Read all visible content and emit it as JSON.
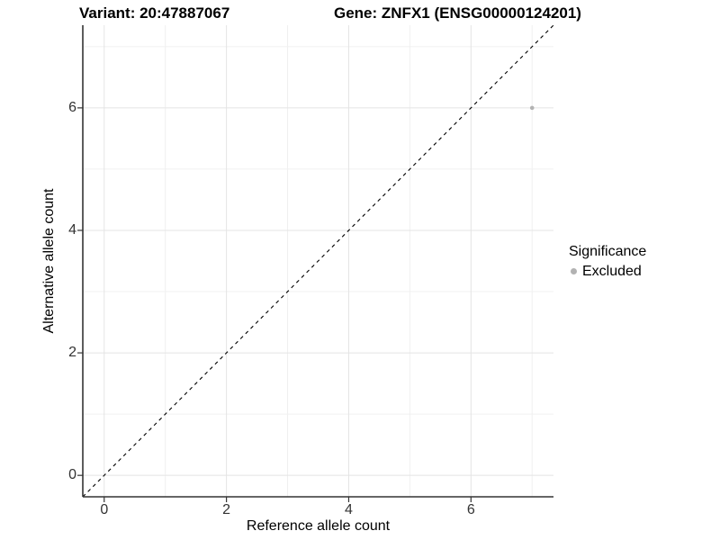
{
  "chart_data": {
    "type": "scatter",
    "titles": {
      "left": "Variant: 20:47887067",
      "right": "Gene: ZNFX1 (ENSG00000124201)"
    },
    "xlabel": "Reference allele count",
    "ylabel": "Alternative allele count",
    "xlim": [
      -0.35,
      7.35
    ],
    "ylim": [
      -0.35,
      7.35
    ],
    "x_ticks": [
      0,
      2,
      4,
      6
    ],
    "y_ticks": [
      0,
      2,
      4,
      6
    ],
    "x_minor_ticks": [
      1,
      3,
      5,
      7
    ],
    "y_minor_ticks": [
      1,
      3,
      5,
      7
    ],
    "grid": true,
    "series": [
      {
        "name": "Excluded",
        "color": "#b2b2b2",
        "points": [
          {
            "x": 7,
            "y": 6
          }
        ]
      }
    ],
    "reference_line": {
      "style": "dashed",
      "slope": 1,
      "intercept": 0,
      "color": "#000000"
    },
    "legend": {
      "title": "Significance",
      "position": "right",
      "entries": [
        {
          "label": "Excluded",
          "color": "#b2b2b2"
        }
      ]
    },
    "colors": {
      "grid_major": "#e4e4e4",
      "grid_minor": "#f0f0f0",
      "axis": "#333333",
      "tick_label": "#333333",
      "point": "#b2b2b2"
    }
  }
}
